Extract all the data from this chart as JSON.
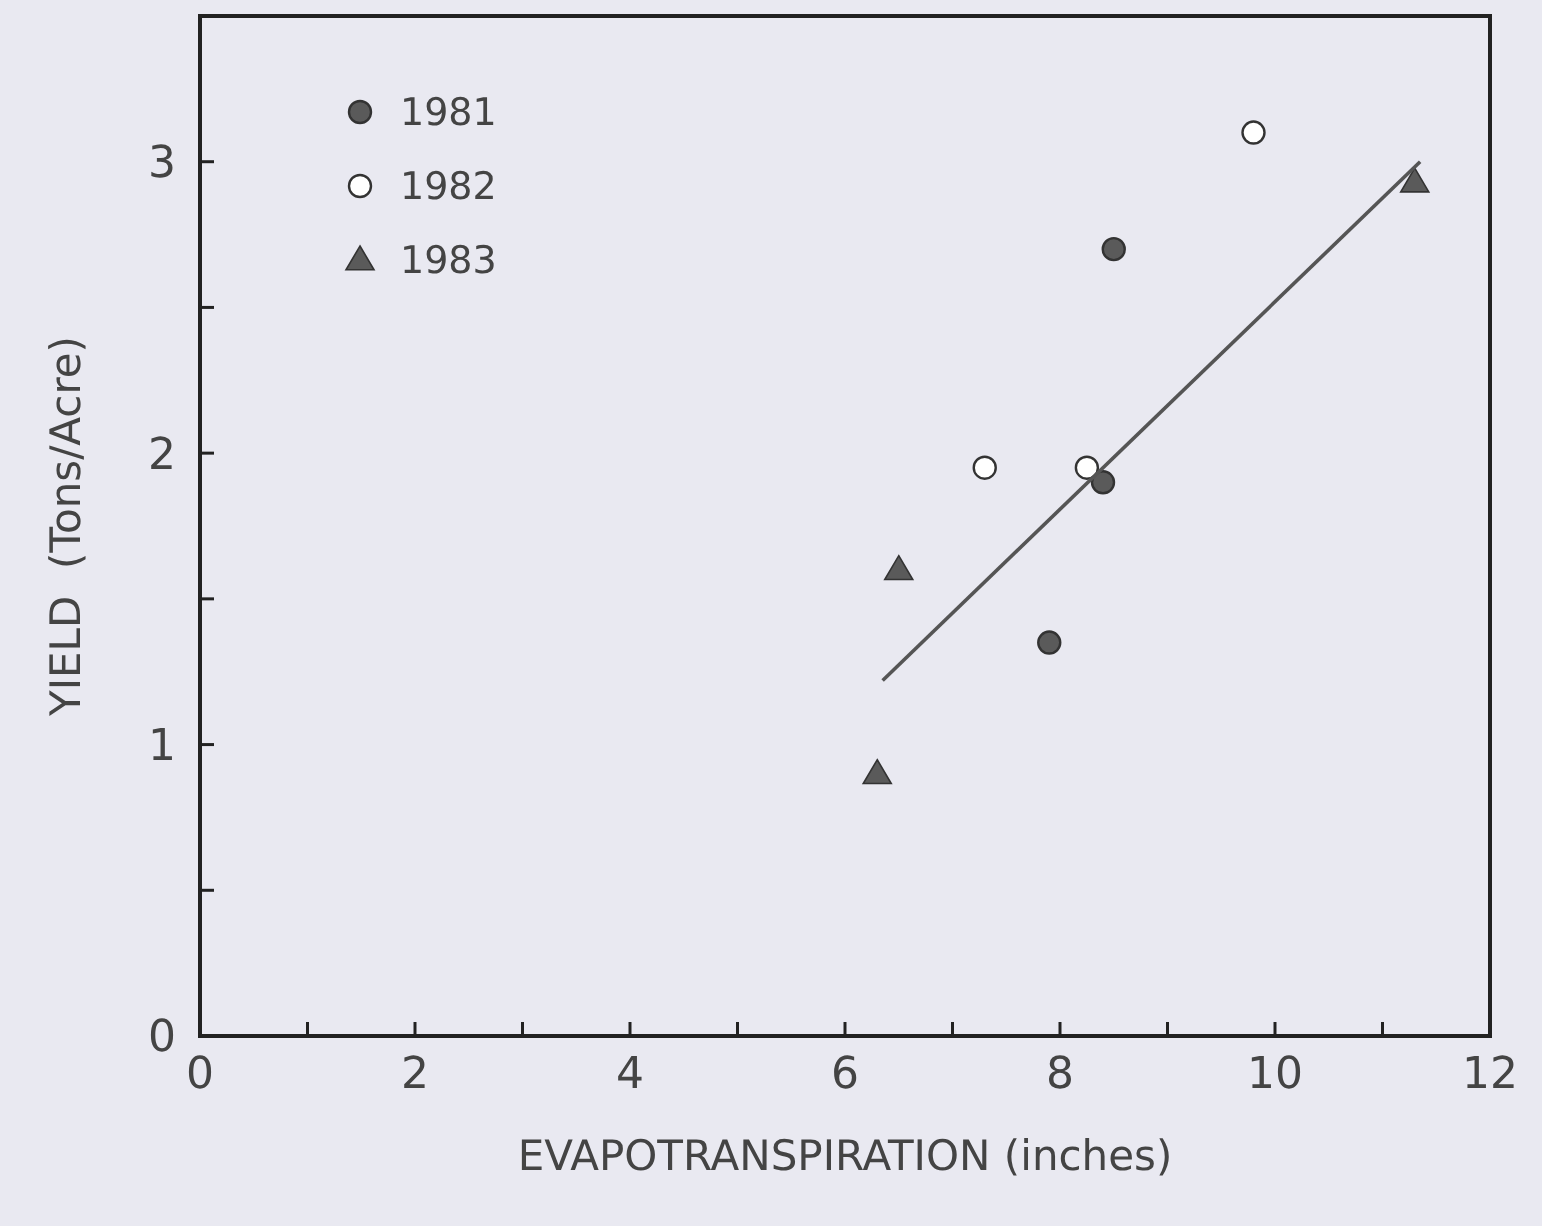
{
  "chart_data": {
    "type": "scatter",
    "xlabel": "EVAPOTRANSPIRATION (inches)",
    "ylabel": "YIELD  (Tons/Acre)",
    "xlim": [
      0,
      12
    ],
    "ylim": [
      0,
      3.5
    ],
    "xticks": [
      0,
      {
        "value": 1,
        "label": null
      },
      2,
      {
        "value": 3,
        "label": null
      },
      4,
      {
        "value": 5,
        "label": null
      },
      6,
      {
        "value": 7,
        "label": null
      },
      8,
      {
        "value": 9,
        "label": null
      },
      10,
      {
        "value": 11,
        "label": null
      },
      12
    ],
    "yticks": [
      0,
      {
        "value": 0.5,
        "label": null
      },
      1,
      {
        "value": 1.5,
        "label": null
      },
      2,
      {
        "value": 2.5,
        "label": null
      },
      3
    ],
    "grid": false,
    "legend": "top left",
    "series": [
      {
        "name": "1981",
        "color": "#5a5a5a",
        "marker": "circle",
        "x": [
          8.5,
          8.4,
          7.9
        ],
        "values": [
          2.7,
          1.9,
          1.35
        ]
      },
      {
        "name": "1982",
        "color": "#ffffff",
        "marker": "circle",
        "x": [
          9.8,
          7.3,
          8.25
        ],
        "values": [
          3.1,
          1.95,
          1.95
        ]
      },
      {
        "name": "1983",
        "color": "#5a5a5a",
        "marker": "triangle",
        "x": [
          11.3,
          6.5,
          6.3
        ],
        "values": [
          2.93,
          1.6,
          0.9
        ]
      },
      {
        "type": "line",
        "color": "#555555",
        "marker": "none",
        "x": [
          6.35,
          11.35
        ],
        "values": [
          1.22,
          3.0
        ]
      }
    ]
  }
}
